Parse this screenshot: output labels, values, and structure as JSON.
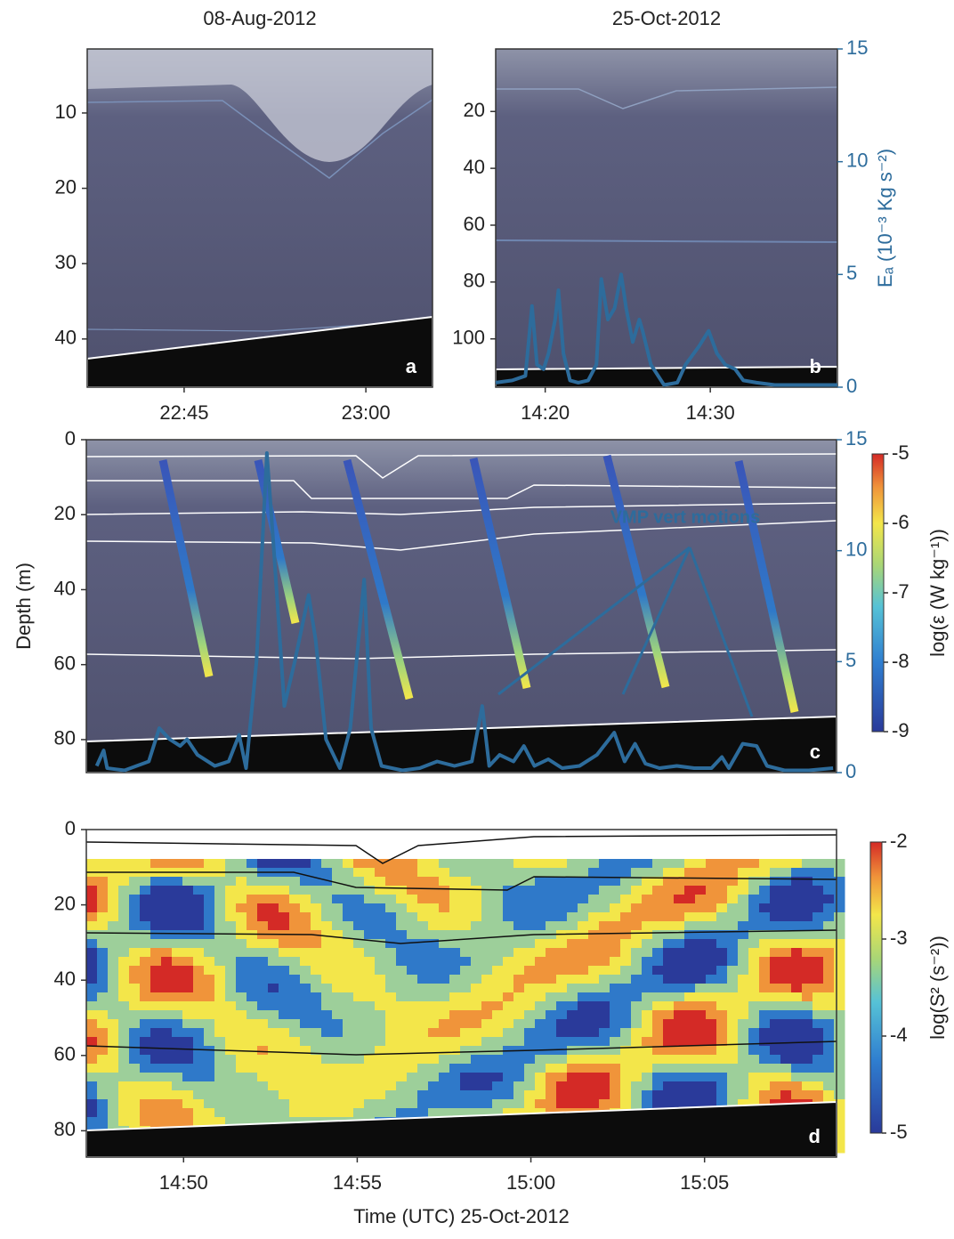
{
  "chart_data": [
    {
      "type": "echogram",
      "title": "08-Aug-2012",
      "panel_label": "a",
      "xlim": [
        1357,
        1385.5
      ],
      "xticks": [
        {
          "value": 1365,
          "label": "22:45"
        },
        {
          "value": 1380,
          "label": "23:00"
        }
      ],
      "ylim": [
        1.5,
        46.4
      ],
      "yticks": [
        10,
        20,
        30,
        40
      ]
    },
    {
      "type": "line",
      "title": "25-Oct-2012",
      "panel_label": "b",
      "xlim": [
        857,
        877.7
      ],
      "xticks": [
        {
          "value": 860,
          "label": "14:20"
        },
        {
          "value": 870,
          "label": "14:30"
        }
      ],
      "ylim": [
        -2,
        117
      ],
      "yticks": [
        20,
        40,
        60,
        80,
        100
      ],
      "y2lim": [
        0,
        15
      ],
      "y2ticks": [
        0,
        5,
        10,
        15
      ],
      "y2label": "Eₐ (10⁻³ Kg s⁻²)",
      "x": [
        857.0,
        858.0,
        858.8,
        859.2,
        859.5,
        859.9,
        860.2,
        860.6,
        860.8,
        861.1,
        861.5,
        862.0,
        862.6,
        863.1,
        863.4,
        863.8,
        864.2,
        864.6,
        864.9,
        865.3,
        865.7,
        865.9,
        866.4,
        867.2,
        868.0,
        868.5,
        869.3,
        869.9,
        870.4,
        870.9,
        871.5,
        872.0,
        872.8,
        873.9,
        875.5,
        877.7
      ],
      "series": [
        {
          "color": "#2d6c9c",
          "axis": "y2",
          "values": [
            0.2,
            0.3,
            0.5,
            3.6,
            1.0,
            0.8,
            1.5,
            3.0,
            4.3,
            1.5,
            0.3,
            0.2,
            0.3,
            1.0,
            4.8,
            3.0,
            3.5,
            5.0,
            3.5,
            2.0,
            3.0,
            2.5,
            1.0,
            0.1,
            0.2,
            1.0,
            1.8,
            2.5,
            1.5,
            1.0,
            0.8,
            0.3,
            0.2,
            0.1,
            0.1,
            0.1
          ]
        }
      ]
    },
    {
      "type": "line",
      "panel_label": "c",
      "ylabel": "Depth (m)",
      "xlim": [
        887.2,
        908.8
      ],
      "ylim": [
        0,
        88.8
      ],
      "yticks": [
        0,
        20,
        40,
        60,
        80
      ],
      "y2lim": [
        0,
        15
      ],
      "y2ticks": [
        0,
        5,
        10,
        15
      ],
      "annotation": "VMP vert motions",
      "colorbar": {
        "label": "log(ε (W kg⁻¹))",
        "lim": [
          -9,
          -5
        ],
        "ticks": [
          -5,
          -6,
          -7,
          -8,
          -9
        ]
      },
      "x": [
        887.5,
        887.7,
        887.8,
        888.3,
        889.0,
        889.3,
        889.6,
        889.9,
        890.1,
        890.4,
        890.9,
        891.3,
        891.6,
        891.8,
        892.1,
        892.4,
        892.6,
        892.9,
        893.2,
        893.6,
        893.8,
        894.1,
        894.5,
        894.8,
        895.2,
        895.4,
        895.7,
        896.3,
        896.8,
        897.3,
        897.8,
        898.3,
        898.6,
        898.8,
        899.1,
        899.5,
        899.8,
        900.1,
        900.5,
        900.9,
        901.4,
        901.9,
        902.4,
        902.7,
        903.0,
        903.3,
        903.7,
        904.2,
        904.7,
        905.2,
        905.5,
        905.7,
        906.1,
        906.5,
        906.8,
        907.3,
        908.0,
        908.7
      ],
      "series": [
        {
          "color": "#2d6c9c",
          "axis": "y2",
          "values": [
            0.3,
            1.0,
            0.2,
            0.1,
            0.5,
            2.0,
            1.5,
            1.2,
            1.5,
            0.8,
            0.3,
            0.5,
            1.7,
            0.2,
            5,
            14.4,
            10,
            3,
            5.0,
            8.0,
            6.0,
            1.5,
            0.2,
            2,
            8.7,
            2.0,
            0.3,
            0.1,
            0.2,
            0.5,
            0.3,
            0.5,
            3.0,
            0.3,
            0.8,
            0.5,
            1.2,
            0.3,
            0.6,
            0.2,
            0.3,
            0.8,
            1.8,
            0.5,
            1.3,
            0.4,
            0.2,
            0.3,
            0.2,
            0.2,
            0.7,
            0.2,
            1.3,
            1.2,
            0.3,
            0.1,
            0.1,
            0.2
          ]
        }
      ]
    },
    {
      "type": "contour",
      "panel_label": "d",
      "xlabel": "Time (UTC) 25-Oct-2012",
      "xlim": [
        887.2,
        908.8
      ],
      "xticks": [
        {
          "value": 890,
          "label": "14:50"
        },
        {
          "value": 895,
          "label": "14:55"
        },
        {
          "value": 900,
          "label": "15:00"
        },
        {
          "value": 905,
          "label": "15:05"
        }
      ],
      "ylim": [
        0,
        87
      ],
      "yticks": [
        0,
        20,
        40,
        60,
        80
      ],
      "colorbar": {
        "label": "log(S² (s⁻²))",
        "lim": [
          -5,
          -2
        ],
        "ticks": [
          -2,
          -3,
          -4,
          -5
        ]
      }
    }
  ]
}
